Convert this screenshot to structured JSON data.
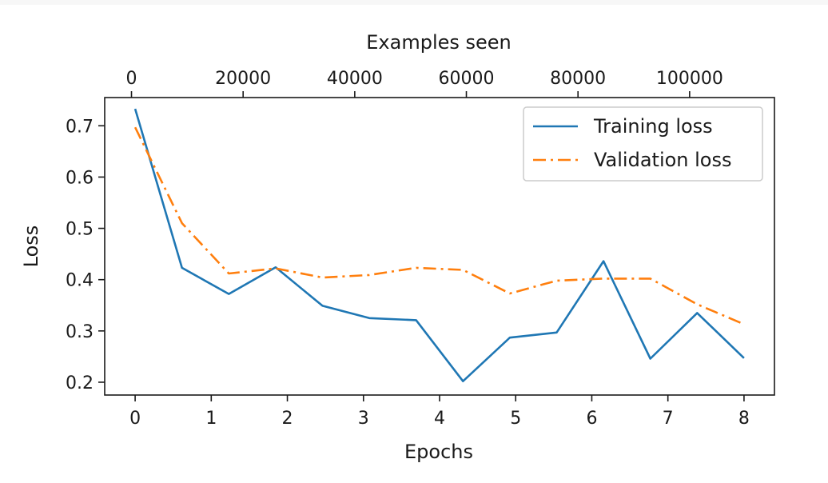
{
  "chart_data": {
    "type": "line",
    "xlabel": "Epochs",
    "ylabel": "Loss",
    "top_xlabel": "Examples seen",
    "xlim": [
      -0.4,
      8.4
    ],
    "ylim": [
      0.175,
      0.755
    ],
    "top_xlim": [
      -4800,
      115200
    ],
    "x_ticks": [
      0,
      1,
      2,
      3,
      4,
      5,
      6,
      7,
      8
    ],
    "y_ticks": [
      0.2,
      0.3,
      0.4,
      0.5,
      0.6,
      0.7
    ],
    "y_tick_labels": [
      "0.2",
      "0.3",
      "0.4",
      "0.5",
      "0.6",
      "0.7"
    ],
    "top_x_ticks": [
      0,
      20000,
      40000,
      60000,
      80000,
      100000
    ],
    "legend_position": "top-right",
    "series": [
      {
        "name": "Training loss",
        "color": "#1f77b4",
        "linestyle": "solid",
        "x": [
          0,
          0.615,
          1.231,
          1.846,
          2.462,
          3.077,
          3.692,
          4.308,
          4.923,
          5.538,
          6.154,
          6.769,
          7.385,
          8.0
        ],
        "values": [
          0.733,
          0.423,
          0.372,
          0.424,
          0.349,
          0.325,
          0.321,
          0.202,
          0.287,
          0.297,
          0.436,
          0.246,
          0.335,
          0.247
        ]
      },
      {
        "name": "Validation loss",
        "color": "#ff7f0e",
        "linestyle": "dashdot",
        "x": [
          0,
          0.615,
          1.231,
          1.846,
          2.462,
          3.077,
          3.692,
          4.308,
          4.923,
          5.538,
          6.154,
          6.769,
          7.385,
          8.0
        ],
        "values": [
          0.697,
          0.51,
          0.412,
          0.422,
          0.404,
          0.409,
          0.423,
          0.419,
          0.373,
          0.398,
          0.402,
          0.402,
          0.352,
          0.313
        ]
      }
    ]
  }
}
